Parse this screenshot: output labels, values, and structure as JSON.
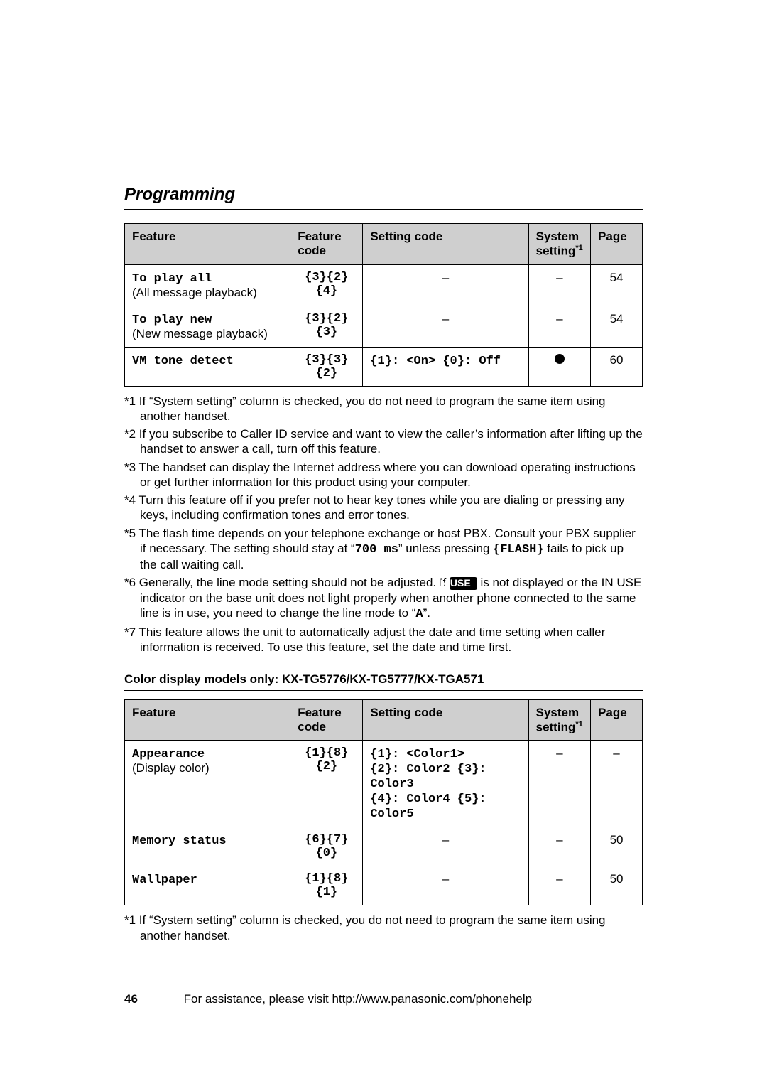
{
  "heading": "Programming",
  "table1": {
    "headers": [
      "Feature",
      "Feature code",
      "Setting code",
      "System setting",
      "Page"
    ],
    "header_sup": "*1",
    "rows": [
      {
        "feature_mono": "To play all",
        "feature_sub": "(All message playback)",
        "code": "{3}{2}{4}",
        "setting": "–",
        "system": "–",
        "page": "54"
      },
      {
        "feature_mono": "To play new",
        "feature_sub": "(New message playback)",
        "code": "{3}{2}{3}",
        "setting": "–",
        "system": "–",
        "page": "54"
      },
      {
        "feature_mono": "VM tone detect",
        "feature_sub": "",
        "code": "{3}{3}{2}",
        "setting_parts": {
          "p1": "{1}",
          "l1": ": <On> ",
          "p2": "{0}",
          "l2": ": Off"
        },
        "system": "●",
        "page": "60"
      }
    ]
  },
  "notes1": [
    "*1 If “System setting” column is checked, you do not need to program the same item using another handset.",
    "*2 If you subscribe to Caller ID service and want to view the caller’s information after lifting up the handset to answer a call, turn off this feature.",
    "*3 The handset can display the Internet address where you can download operating instructions or get further information for this product using your computer.",
    "*4 Turn this feature off if you prefer not to hear key tones while you are dialing or pressing any keys, including confirmation tones and error tones."
  ],
  "note5": {
    "pre": "*5 The flash time depends on your telephone exchange or host PBX. Consult your PBX supplier if necessary. The setting should stay at “",
    "mono": "700 ms",
    "mid": "” unless pressing ",
    "flash": "{FLASH}",
    "post": " fails to pick up the call waiting call."
  },
  "note6": {
    "pre": "*6 Generally, the line mode setting should not be adjusted. If ",
    "badge": "IN USE",
    "mid": " is not displayed or the IN USE indicator on the base unit does not light properly when another phone connected to the same line is in use, you need to change the line mode to “",
    "mono": "A",
    "post": "”."
  },
  "note7": "*7 This feature allows the unit to automatically adjust the date and time setting when caller information is received. To use this feature, set the date and time first.",
  "subhead": "Color display models only: KX-TG5776/KX-TG5777/KX-TGA571",
  "table2": {
    "headers": [
      "Feature",
      "Feature code",
      "Setting code",
      "System setting",
      "Page"
    ],
    "header_sup": "*1",
    "rows": [
      {
        "feature_mono": "Appearance",
        "feature_sub": "(Display color)",
        "code": "{1}{8}{2}",
        "setting_parts": {
          "p1": "{1}",
          "l1": ": <Color1>",
          "p2": "{2}",
          "l2": ": Color2 ",
          "p3": "{3}",
          "l3": ": Color3",
          "p4": "{4}",
          "l4": ": Color4 ",
          "p5": "{5}",
          "l5": ": Color5"
        },
        "system": "–",
        "page": "–"
      },
      {
        "feature_mono": "Memory status",
        "feature_sub": "",
        "code": "{6}{7}{0}",
        "setting": "–",
        "system": "–",
        "page": "50"
      },
      {
        "feature_mono": "Wallpaper",
        "feature_sub": "",
        "code": "{1}{8}{1}",
        "setting": "–",
        "system": "–",
        "page": "50"
      }
    ]
  },
  "notes2": "*1 If “System setting” column is checked, you do not need to program the same item using another handset.",
  "footer": {
    "page": "46",
    "text": "For assistance, please visit http://www.panasonic.com/phonehelp"
  }
}
